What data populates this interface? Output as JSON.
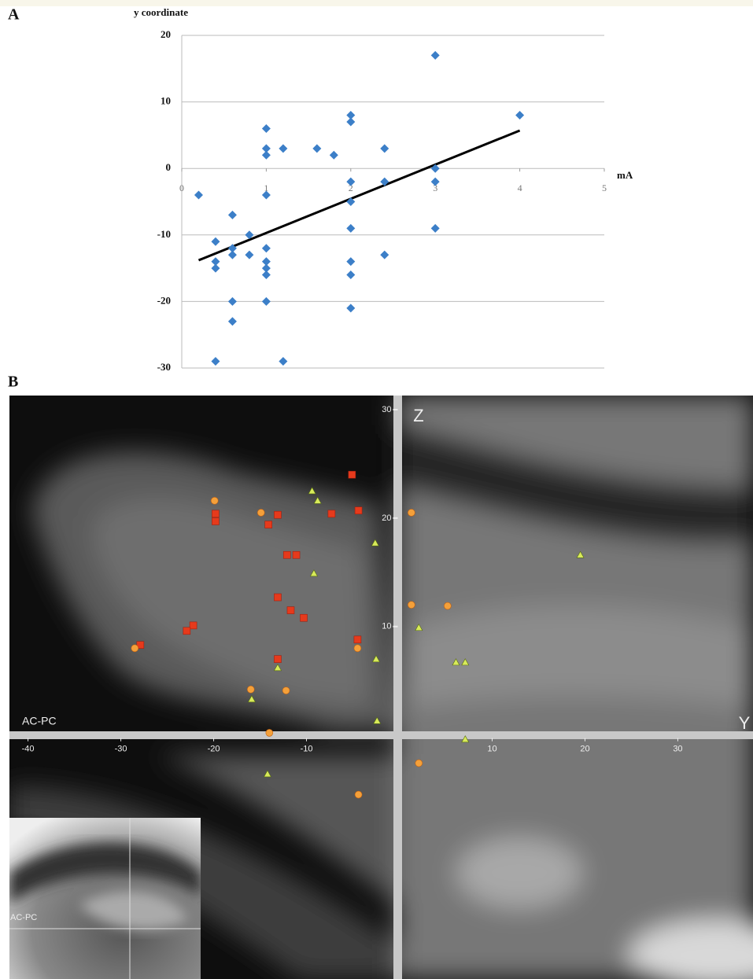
{
  "chart_data": [
    {
      "type": "scatter",
      "panel": "A",
      "y_label": "y coordinate",
      "x_label": "mA",
      "xlim": [
        0,
        5
      ],
      "xticks": [
        0,
        1,
        2,
        3,
        4,
        5
      ],
      "ylim": [
        -30,
        20
      ],
      "yticks": [
        -30,
        -20,
        -10,
        0,
        10,
        20
      ],
      "grid": true,
      "color": "#3c7fc8",
      "marker": "diamond",
      "x": [
        0.2,
        0.4,
        0.4,
        0.4,
        0.4,
        0.6,
        0.6,
        0.6,
        0.6,
        0.6,
        0.8,
        0.8,
        1,
        1,
        1,
        1,
        1,
        1,
        1,
        1,
        1,
        1.2,
        1.2,
        1.6,
        1.8,
        2,
        2,
        2,
        2,
        2,
        2,
        2,
        2,
        2.4,
        2.4,
        2.4,
        3,
        3,
        3,
        3,
        4
      ],
      "values": [
        -4,
        -11,
        -14,
        -15,
        -29,
        -7,
        -12,
        -13,
        -20,
        -23,
        -10,
        -13,
        6,
        3,
        2,
        -4,
        -12,
        -14,
        -15,
        -16,
        -20,
        3,
        -29,
        3,
        2,
        8,
        7,
        -2,
        -5,
        -9,
        -14,
        -16,
        -21,
        3,
        -2,
        -13,
        17,
        0,
        -2,
        -9,
        8
      ],
      "trendline": {
        "color": "#000000",
        "x": [
          0.2,
          4
        ],
        "y": [
          -13.8,
          5.7
        ]
      }
    },
    {
      "type": "scatter",
      "panel": "B",
      "x_label": "Y",
      "y_label": "Z",
      "annotations": [
        "AC-PC",
        "AC-PC"
      ],
      "xlim": [
        -42,
        38.1
      ],
      "xticks": [
        -40,
        -30,
        -20,
        -10,
        10,
        20,
        30
      ],
      "ylim": [
        -22.5,
        31.3
      ],
      "yticks": [
        10,
        20,
        30
      ],
      "grid": false,
      "series": [
        {
          "color": "#e63a1c",
          "marker": "square",
          "x": [
            -5.1,
            -4.4,
            -19.8,
            -19.8,
            -13.1,
            -14.1,
            -7.3,
            -12.1,
            -11.1,
            -13.1,
            -11.7,
            -10.3,
            -22.2,
            -22.9,
            -27.9,
            -4.5,
            -13.1
          ],
          "values": [
            24.0,
            20.7,
            20.4,
            19.7,
            20.3,
            19.4,
            20.4,
            16.6,
            16.6,
            12.7,
            11.5,
            10.8,
            10.1,
            9.6,
            8.3,
            8.8,
            7.0
          ]
        },
        {
          "color": "#f4a03a",
          "marker": "circle",
          "x": [
            -19.9,
            -14.9,
            -28.5,
            -4.5,
            -16.0,
            -12.2,
            -14.0,
            1.3,
            1.3,
            5.2,
            2.1,
            -4.4
          ],
          "values": [
            21.6,
            20.5,
            8.0,
            8.0,
            4.2,
            4.1,
            0.2,
            20.5,
            12.0,
            11.9,
            -2.6,
            -5.5
          ]
        },
        {
          "color": "#d8ea5a",
          "marker": "triangle",
          "x": [
            -9.4,
            -8.8,
            -2.6,
            -9.2,
            -2.5,
            -13.1,
            -15.9,
            -2.4,
            2.1,
            6.1,
            7.1,
            19.5,
            7.1,
            -14.2
          ],
          "values": [
            22.5,
            21.6,
            17.7,
            14.9,
            7.0,
            6.2,
            3.3,
            1.3,
            9.9,
            6.7,
            6.7,
            16.6,
            -0.4,
            -3.6
          ]
        }
      ]
    }
  ]
}
